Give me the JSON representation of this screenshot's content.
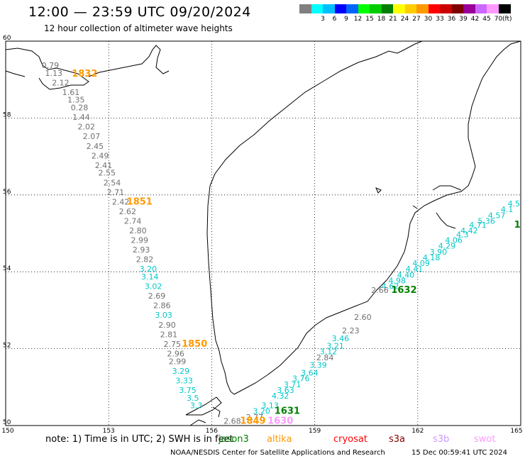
{
  "header": {
    "title": "12:00 — 23:59 UTC 09/20/2024",
    "subtitle": "12 hour collection of altimeter wave heights"
  },
  "colorbar": {
    "unit": "(ft)",
    "swatches": [
      {
        "color": "#808080",
        "label": ""
      },
      {
        "color": "#00ffff",
        "label": "3"
      },
      {
        "color": "#00bfff",
        "label": "6"
      },
      {
        "color": "#0000ff",
        "label": "9"
      },
      {
        "color": "#0066ff",
        "label": "12"
      },
      {
        "color": "#00ff00",
        "label": "15"
      },
      {
        "color": "#00cc00",
        "label": "18"
      },
      {
        "color": "#008000",
        "label": "21"
      },
      {
        "color": "#ffff00",
        "label": "24"
      },
      {
        "color": "#ffcc00",
        "label": "27"
      },
      {
        "color": "#ff9900",
        "label": "30"
      },
      {
        "color": "#ff0000",
        "label": "33"
      },
      {
        "color": "#cc0000",
        "label": "36"
      },
      {
        "color": "#800000",
        "label": "39"
      },
      {
        "color": "#990099",
        "label": "42"
      },
      {
        "color": "#cc66ff",
        "label": "45"
      },
      {
        "color": "#ff99ff",
        "label": "70"
      },
      {
        "color": "#000000",
        "label": ""
      }
    ]
  },
  "axes": {
    "lon_ticks": [
      "150",
      "153",
      "156",
      "159",
      "162",
      "165"
    ],
    "lat_ticks": [
      "60",
      "58",
      "56",
      "54",
      "52",
      "50"
    ]
  },
  "tracks": [
    {
      "id": "jason-3-pass-1832-1851-1850",
      "points": [
        {
          "lon": 151.3,
          "lat": 59.3,
          "h": "0.79",
          "c": "#707070"
        },
        {
          "lon": 151.4,
          "lat": 59.1,
          "h": "1.13",
          "c": "#707070"
        },
        {
          "lon": 151.6,
          "lat": 58.85,
          "h": "2.12",
          "c": "#707070"
        },
        {
          "lon": 151.9,
          "lat": 58.6,
          "h": "1.61",
          "c": "#707070"
        },
        {
          "lon": 152.05,
          "lat": 58.4,
          "h": "1.35",
          "c": "#707070"
        },
        {
          "lon": 152.15,
          "lat": 58.2,
          "h": "0.28",
          "c": "#707070"
        },
        {
          "lon": 152.2,
          "lat": 57.95,
          "h": "1.44",
          "c": "#707070"
        },
        {
          "lon": 152.35,
          "lat": 57.7,
          "h": "2.02",
          "c": "#707070"
        },
        {
          "lon": 152.5,
          "lat": 57.45,
          "h": "2.07",
          "c": "#707070"
        },
        {
          "lon": 152.6,
          "lat": 57.2,
          "h": "2.45",
          "c": "#707070"
        },
        {
          "lon": 152.75,
          "lat": 56.95,
          "h": "2.49",
          "c": "#707070"
        },
        {
          "lon": 152.85,
          "lat": 56.7,
          "h": "2.41",
          "c": "#707070"
        },
        {
          "lon": 152.95,
          "lat": 56.5,
          "h": "2.55",
          "c": "#707070"
        },
        {
          "lon": 153.1,
          "lat": 56.25,
          "h": "2.54",
          "c": "#707070"
        },
        {
          "lon": 153.2,
          "lat": 56.0,
          "h": "2.71",
          "c": "#707070"
        },
        {
          "lon": 153.35,
          "lat": 55.75,
          "h": "2.42",
          "c": "#707070"
        },
        {
          "lon": 153.55,
          "lat": 55.5,
          "h": "2.62",
          "c": "#707070"
        },
        {
          "lon": 153.7,
          "lat": 55.25,
          "h": "2.74",
          "c": "#707070"
        },
        {
          "lon": 153.85,
          "lat": 55.0,
          "h": "2.80",
          "c": "#707070"
        },
        {
          "lon": 153.9,
          "lat": 54.75,
          "h": "2.99",
          "c": "#707070"
        },
        {
          "lon": 153.95,
          "lat": 54.5,
          "h": "2.93",
          "c": "#707070"
        },
        {
          "lon": 154.05,
          "lat": 54.25,
          "h": "2.82",
          "c": "#707070"
        },
        {
          "lon": 154.15,
          "lat": 54.0,
          "h": "3.20",
          "c": "#00c8c8"
        },
        {
          "lon": 154.2,
          "lat": 53.8,
          "h": "3.14",
          "c": "#00c8c8"
        },
        {
          "lon": 154.3,
          "lat": 53.55,
          "h": "3.02",
          "c": "#00c8c8"
        },
        {
          "lon": 154.4,
          "lat": 53.3,
          "h": "2.69",
          "c": "#707070"
        },
        {
          "lon": 154.55,
          "lat": 53.05,
          "h": "2.86",
          "c": "#707070"
        },
        {
          "lon": 154.6,
          "lat": 52.8,
          "h": "3.03",
          "c": "#00c8c8"
        },
        {
          "lon": 154.7,
          "lat": 52.55,
          "h": "2.90",
          "c": "#707070"
        },
        {
          "lon": 154.75,
          "lat": 52.3,
          "h": "2.81",
          "c": "#707070"
        },
        {
          "lon": 154.85,
          "lat": 52.05,
          "h": "2.75",
          "c": "#707070"
        },
        {
          "lon": 154.95,
          "lat": 51.8,
          "h": "2.96",
          "c": "#707070"
        },
        {
          "lon": 155.0,
          "lat": 51.6,
          "h": "2.99",
          "c": "#707070"
        },
        {
          "lon": 155.1,
          "lat": 51.35,
          "h": "3.29",
          "c": "#00c8c8"
        },
        {
          "lon": 155.2,
          "lat": 51.1,
          "h": "3.33",
          "c": "#00c8c8"
        },
        {
          "lon": 155.3,
          "lat": 50.85,
          "h": "3.75",
          "c": "#00c8c8"
        },
        {
          "lon": 155.45,
          "lat": 50.65,
          "h": "3.5",
          "c": "#00c8c8"
        },
        {
          "lon": 155.55,
          "lat": 50.45,
          "h": "3.3",
          "c": "#00c8c8"
        }
      ]
    },
    {
      "id": "jason-3-pass-1632-1631",
      "points": [
        {
          "lon": 164.8,
          "lat": 55.7,
          "h": "4.5",
          "c": "#00c8c8"
        },
        {
          "lon": 164.6,
          "lat": 55.55,
          "h": "4.1",
          "c": "#00c8c8"
        },
        {
          "lon": 164.3,
          "lat": 55.4,
          "h": "4.57",
          "c": "#00c8c8"
        },
        {
          "lon": 164.0,
          "lat": 55.25,
          "h": "5.36",
          "c": "#00c8c8"
        },
        {
          "lon": 163.75,
          "lat": 55.15,
          "h": "4.71",
          "c": "#00c8c8"
        },
        {
          "lon": 163.5,
          "lat": 55.0,
          "h": "4.42",
          "c": "#00c8c8"
        },
        {
          "lon": 163.3,
          "lat": 54.9,
          "h": "4.3",
          "c": "#00c8c8"
        },
        {
          "lon": 163.05,
          "lat": 54.75,
          "h": "4.06",
          "c": "#00c8c8"
        },
        {
          "lon": 162.85,
          "lat": 54.6,
          "h": "4.29",
          "c": "#00c8c8"
        },
        {
          "lon": 162.6,
          "lat": 54.45,
          "h": "3.90",
          "c": "#00c8c8"
        },
        {
          "lon": 162.4,
          "lat": 54.3,
          "h": "4.18",
          "c": "#00c8c8"
        },
        {
          "lon": 162.1,
          "lat": 54.15,
          "h": "4.09",
          "c": "#00c8c8"
        },
        {
          "lon": 161.9,
          "lat": 54.0,
          "h": "4.41",
          "c": "#00c8c8"
        },
        {
          "lon": 161.65,
          "lat": 53.85,
          "h": "4.40",
          "c": "#00c8c8"
        },
        {
          "lon": 161.4,
          "lat": 53.7,
          "h": "4.98",
          "c": "#00c8c8"
        },
        {
          "lon": 161.2,
          "lat": 53.55,
          "h": "4.62",
          "c": "#00c8c8"
        },
        {
          "lon": 160.9,
          "lat": 53.45,
          "h": "2.66",
          "c": "#707070"
        },
        {
          "lon": 160.4,
          "lat": 52.75,
          "h": "2.60",
          "c": "#707070"
        },
        {
          "lon": 160.05,
          "lat": 52.4,
          "h": "2.23",
          "c": "#707070"
        },
        {
          "lon": 159.75,
          "lat": 52.2,
          "h": "3.46",
          "c": "#00c8c8"
        },
        {
          "lon": 159.6,
          "lat": 52.0,
          "h": "3.21",
          "c": "#00c8c8"
        },
        {
          "lon": 159.4,
          "lat": 51.85,
          "h": "3.12",
          "c": "#00c8c8"
        },
        {
          "lon": 159.3,
          "lat": 51.7,
          "h": "2.84",
          "c": "#707070"
        },
        {
          "lon": 159.1,
          "lat": 51.5,
          "h": "3.39",
          "c": "#00c8c8"
        },
        {
          "lon": 158.85,
          "lat": 51.3,
          "h": "3.64",
          "c": "#00c8c8"
        },
        {
          "lon": 158.6,
          "lat": 51.15,
          "h": "3.76",
          "c": "#00c8c8"
        },
        {
          "lon": 158.35,
          "lat": 51.0,
          "h": "3.71",
          "c": "#00c8c8"
        },
        {
          "lon": 158.15,
          "lat": 50.85,
          "h": "3.63",
          "c": "#00c8c8"
        },
        {
          "lon": 158.0,
          "lat": 50.7,
          "h": "4.32",
          "c": "#00c8c8"
        },
        {
          "lon": 157.7,
          "lat": 50.45,
          "h": "3.13",
          "c": "#00c8c8"
        },
        {
          "lon": 157.45,
          "lat": 50.3,
          "h": "3.20",
          "c": "#00c8c8"
        },
        {
          "lon": 157.25,
          "lat": 50.15,
          "h": "2.77",
          "c": "#707070"
        },
        {
          "lon": 156.6,
          "lat": 50.05,
          "h": "2.68",
          "c": "#707070"
        }
      ]
    }
  ],
  "pass_labels": [
    {
      "lon": 152.3,
      "lat": 59.08,
      "text": "1832",
      "c": "#ff9900"
    },
    {
      "lon": 153.9,
      "lat": 55.75,
      "text": "1851",
      "c": "#ff9900"
    },
    {
      "lon": 155.5,
      "lat": 52.05,
      "text": "1850",
      "c": "#ff9900"
    },
    {
      "lon": 161.6,
      "lat": 53.45,
      "text": "1632",
      "c": "#008000"
    },
    {
      "lon": 164.9,
      "lat": 55.15,
      "text": "1",
      "c": "#008000"
    },
    {
      "lon": 158.2,
      "lat": 50.3,
      "text": "1631",
      "c": "#008000"
    },
    {
      "lon": 157.2,
      "lat": 50.05,
      "text": "1849",
      "c": "#ff9900"
    },
    {
      "lon": 158.0,
      "lat": 50.05,
      "text": "1630",
      "c": "#ff99ff"
    }
  ],
  "footer": {
    "note": "note: 1) Time is in UTC; 2) SWH is in feet",
    "satellites": [
      {
        "name": "jason3",
        "color": "#008000"
      },
      {
        "name": "altika",
        "color": "#ff9900"
      },
      {
        "name": "cryosat",
        "color": "#ff0000"
      },
      {
        "name": "s3a",
        "color": "#800000"
      },
      {
        "name": "s3b",
        "color": "#cc99ff"
      },
      {
        "name": "swot",
        "color": "#ff99ff"
      }
    ],
    "credit": "NOAA/NESDIS Center for Satellite Applications and Research",
    "timestamp": "15 Dec 00:59:41 UTC 2024"
  }
}
